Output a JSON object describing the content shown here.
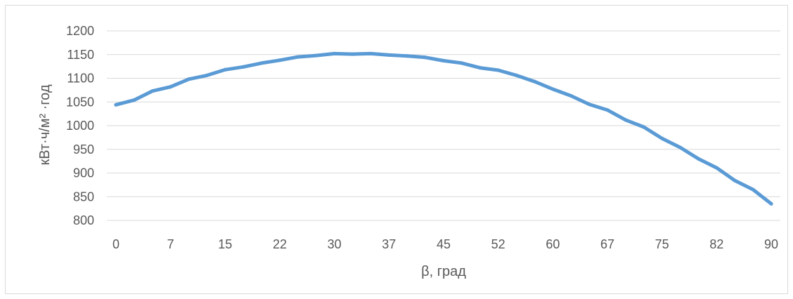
{
  "chart_data": {
    "type": "line",
    "title": "",
    "xlabel": "β, град",
    "ylabel": "кВт·ч/м² ·год",
    "ylim": [
      800,
      1200
    ],
    "y_ticks": [
      "800",
      "850",
      "900",
      "950",
      "1000",
      "1050",
      "1100",
      "1150",
      "1200"
    ],
    "x_tick_labels": [
      "0",
      "7",
      "15",
      "22",
      "30",
      "37",
      "45",
      "52",
      "60",
      "67",
      "75",
      "82",
      "90"
    ],
    "grid": "horizontal",
    "legend": "none",
    "line_color": "#5b9bd5",
    "series": [
      {
        "x": [
          0,
          2.5,
          5,
          7.5,
          10,
          12.5,
          15,
          17.5,
          20,
          22.5,
          25,
          27.5,
          30,
          32.5,
          35,
          37.5,
          40,
          42.5,
          45,
          47.5,
          50,
          52.5,
          55,
          57.5,
          60,
          62.5,
          65,
          67.5,
          70,
          72.5,
          75,
          77.5,
          80,
          82.5,
          85,
          87.5,
          90
        ],
        "values": [
          1044,
          1054,
          1073,
          1082,
          1098,
          1106,
          1118,
          1124,
          1132,
          1138,
          1145,
          1148,
          1152,
          1151,
          1152,
          1149,
          1147,
          1144,
          1137,
          1132,
          1122,
          1117,
          1106,
          1093,
          1077,
          1063,
          1045,
          1033,
          1012,
          997,
          973,
          954,
          930,
          911,
          884,
          865,
          835
        ]
      }
    ]
  }
}
